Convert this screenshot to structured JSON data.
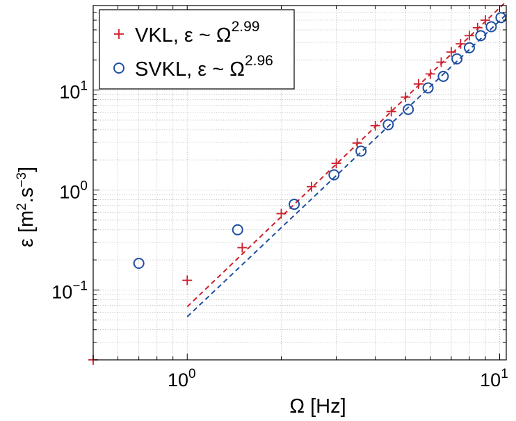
{
  "chart_data": {
    "type": "scatter",
    "xscale": "log",
    "yscale": "log",
    "xlim": [
      0.5,
      10.5
    ],
    "ylim": [
      0.02,
      70
    ],
    "grid": true,
    "legend_position": "top-left",
    "xlabel": "Ω [Hz]",
    "ylabel": {
      "main": "ε [m",
      "sup1": "2",
      "mid": ".s",
      "sup2": "−3",
      "end": "]"
    },
    "xticks": [
      {
        "value": 1,
        "base": "10",
        "exp": "0"
      },
      {
        "value": 10,
        "base": "10",
        "exp": "1"
      }
    ],
    "yticks": [
      {
        "value": 0.1,
        "base": "10",
        "exp": "−1"
      },
      {
        "value": 1,
        "base": "10",
        "exp": "0"
      },
      {
        "value": 10,
        "base": "10",
        "exp": "1"
      }
    ],
    "series": [
      {
        "name": "VKL",
        "legend": {
          "label": "VKL, ε ~ Ω",
          "exponent": "2.99"
        },
        "marker": "plus",
        "color": "#cc1f2b",
        "x": [
          0.5,
          1.0,
          1.5,
          2.0,
          2.5,
          3.0,
          3.5,
          4.0,
          4.5,
          5.0,
          5.5,
          6.0,
          6.5,
          7.0,
          7.5,
          8.0,
          8.5,
          9.0
        ],
        "y": [
          0.02,
          0.125,
          0.265,
          0.58,
          1.08,
          1.85,
          2.95,
          4.4,
          6.1,
          8.5,
          11.5,
          14.5,
          19.0,
          24.0,
          29.0,
          35.0,
          42.0,
          50.0
        ],
        "fit": {
          "exponent": 2.99,
          "x_range": [
            1.0,
            10.5
          ],
          "y_start": 0.068
        }
      },
      {
        "name": "SVKL",
        "legend": {
          "label": "SVKL, ε ~ Ω",
          "exponent": "2.96"
        },
        "marker": "circle",
        "color": "#1f4ea0",
        "x": [
          0.7,
          1.45,
          2.2,
          2.95,
          3.6,
          4.4,
          5.1,
          5.9,
          6.6,
          7.3,
          8.0,
          8.7,
          9.4,
          10.1
        ],
        "y": [
          0.185,
          0.4,
          0.72,
          1.42,
          2.45,
          4.5,
          6.4,
          10.5,
          13.7,
          20.5,
          26.5,
          35.0,
          43.0,
          53.0
        ],
        "fit": {
          "exponent": 2.96,
          "x_range": [
            1.0,
            10.5
          ],
          "y_start": 0.054
        }
      }
    ]
  }
}
